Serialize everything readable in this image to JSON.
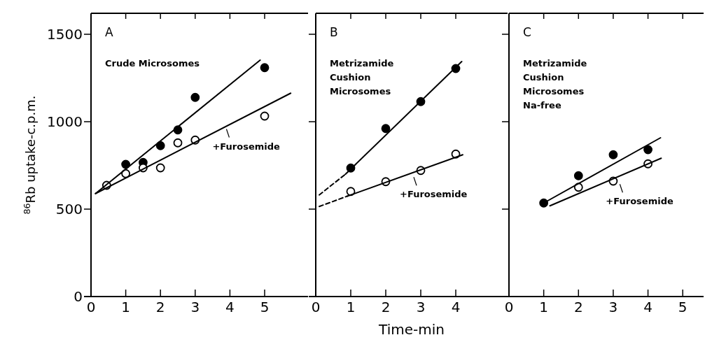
{
  "chart_data": [
    {
      "type": "scatter",
      "title": "A",
      "subtitle": "Crude Microsomes",
      "ylabel": "$^{86}$Rb uptake-c.p.m.",
      "xlim": [
        0,
        6.25
      ],
      "ylim": [
        0,
        1620
      ],
      "xticks": [
        0,
        1,
        2,
        3,
        4,
        5
      ],
      "yticks": [
        0,
        500,
        1000,
        1500
      ],
      "marker": "circle",
      "grid": false,
      "series": [
        {
          "type": "scatter",
          "color": "#000000",
          "x": [
            1,
            1.5,
            2,
            2.5,
            3,
            5
          ],
          "values": [
            756,
            767,
            863,
            953,
            1139,
            1309
          ]
        },
        {
          "type": "scatter",
          "color": "#000000",
          "x": [
            0.45,
            1,
            1.5,
            2,
            2.5,
            3,
            5
          ],
          "values": [
            636,
            703,
            736,
            736,
            879,
            895,
            1032
          ]
        },
        {
          "type": "line",
          "color": "#000000",
          "marker": "none",
          "line_style": "solid",
          "x": [
            0.13,
            4.87
          ],
          "values": [
            589,
            1352
          ]
        },
        {
          "type": "line",
          "color": "#000000",
          "marker": "none",
          "line_style": "solid",
          "x": [
            0.13,
            5.75
          ],
          "values": [
            589,
            1163
          ]
        }
      ],
      "annotations": [
        {
          "text": "+Furosemide",
          "x": 3.9,
          "y": 970
        }
      ]
    },
    {
      "type": "scatter",
      "title": "B",
      "subtitle": "Metrizamide\nCushion\nMicrosomes",
      "xlabel": "Time-min",
      "xlim": [
        0,
        5.48
      ],
      "ylim": [
        0,
        1620
      ],
      "xticks": [
        0,
        1,
        2,
        3,
        4
      ],
      "yticks": [
        0,
        500,
        1000,
        1500
      ],
      "tick_labels": "x",
      "marker": "circle",
      "grid": false,
      "series": [
        {
          "type": "scatter",
          "color": "#000000",
          "x": [
            1,
            2,
            3,
            4
          ],
          "values": [
            735,
            961,
            1115,
            1304
          ]
        },
        {
          "type": "scatter",
          "color": "#000000",
          "x": [
            1,
            2,
            3,
            4
          ],
          "values": [
            601,
            657,
            721,
            815
          ]
        },
        {
          "type": "line",
          "color": "#000000",
          "marker": "none",
          "line_style": "dashed",
          "x": [
            0.1,
            0.85
          ],
          "values": [
            581,
            700
          ]
        },
        {
          "type": "line",
          "color": "#000000",
          "marker": "none",
          "line_style": "solid",
          "x": [
            0.85,
            4.17
          ],
          "values": [
            700,
            1344
          ]
        },
        {
          "type": "line",
          "color": "#000000",
          "marker": "none",
          "line_style": "dashed",
          "x": [
            0.1,
            0.9
          ],
          "values": [
            515,
            574
          ]
        },
        {
          "type": "line",
          "color": "#000000",
          "marker": "none",
          "line_style": "solid",
          "x": [
            0.9,
            4.2
          ],
          "values": [
            574,
            811
          ]
        }
      ],
      "annotations": [
        {
          "text": "+Furosemide",
          "x": 2.8,
          "y": 695
        }
      ]
    },
    {
      "type": "scatter",
      "title": "C",
      "subtitle": "Metrizamide\nCushion\nMicrosomes\nNa-free",
      "xlim": [
        0,
        5.6
      ],
      "ylim": [
        0,
        1620
      ],
      "xticks": [
        0,
        1,
        2,
        3,
        4,
        5
      ],
      "yticks": [
        0,
        500,
        1000,
        1500
      ],
      "tick_labels": "x",
      "marker": "circle",
      "grid": false,
      "series": [
        {
          "type": "scatter",
          "color": "#000000",
          "x": [
            1,
            2,
            3,
            4
          ],
          "values": [
            535,
            691,
            811,
            840
          ]
        },
        {
          "type": "scatter",
          "color": "#000000",
          "x": [
            2,
            3,
            4
          ],
          "values": [
            625,
            660,
            759
          ]
        },
        {
          "type": "line",
          "color": "#000000",
          "marker": "none",
          "line_style": "solid",
          "x": [
            1,
            4.36
          ],
          "values": [
            535,
            908
          ]
        },
        {
          "type": "line",
          "color": "#000000",
          "marker": "none",
          "line_style": "solid",
          "x": [
            1.18,
            4.38
          ],
          "values": [
            519,
            791
          ]
        }
      ],
      "annotations": [
        {
          "text": "+Furosemide",
          "x": 3.19,
          "y": 655
        }
      ]
    }
  ]
}
